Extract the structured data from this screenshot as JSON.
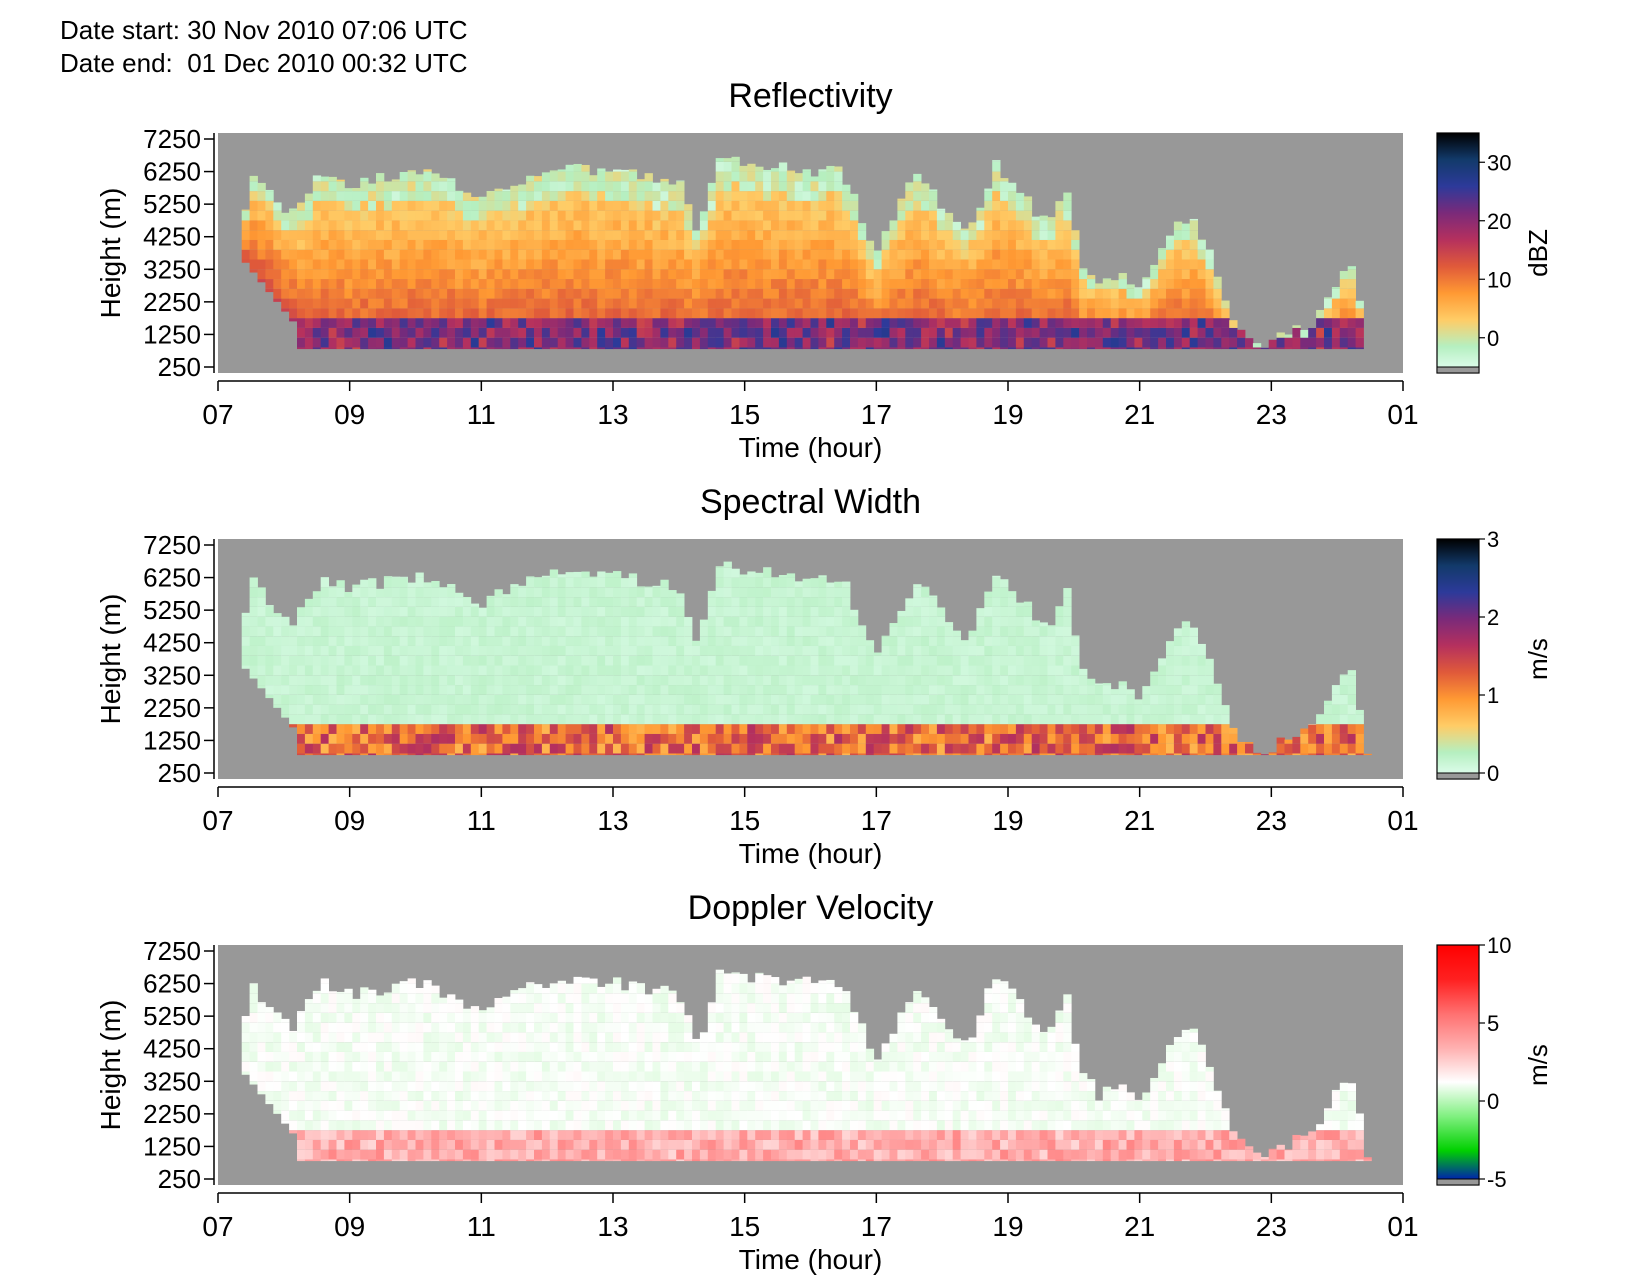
{
  "header": {
    "date_start": "Date start: 30 Nov 2010 07:06 UTC",
    "date_end": "Date end:  01 Dec 2010 00:32 UTC"
  },
  "colors": {
    "no_data": "#989898",
    "axis": "#000000"
  },
  "chart_data": [
    {
      "type": "heatmap",
      "title": "Reflectivity",
      "xlabel": "Time (hour)",
      "ylabel": "Height (m)",
      "x_ticks": [
        "07",
        "09",
        "11",
        "13",
        "15",
        "17",
        "19",
        "21",
        "23",
        "01"
      ],
      "y_ticks": [
        "7250",
        "6250",
        "5250",
        "4250",
        "3250",
        "2250",
        "1250",
        "250"
      ],
      "xlim": [
        "07:00",
        "01:00"
      ],
      "ylim": [
        250,
        7250
      ],
      "colorbar": {
        "label": "dBZ",
        "ticks": [
          "30",
          "20",
          "10",
          "0"
        ],
        "range": [
          -5,
          35
        ],
        "stops": [
          "#e6fff4",
          "#b5efc0",
          "#ffcc66",
          "#ff9933",
          "#e05a3a",
          "#b5305e",
          "#7a2a7a",
          "#2d3a9a",
          "#123a6a",
          "#000000"
        ]
      }
    },
    {
      "type": "heatmap",
      "title": "Spectral Width",
      "xlabel": "Time (hour)",
      "ylabel": "Height (m)",
      "x_ticks": [
        "07",
        "09",
        "11",
        "13",
        "15",
        "17",
        "19",
        "21",
        "23",
        "01"
      ],
      "y_ticks": [
        "7250",
        "6250",
        "5250",
        "4250",
        "3250",
        "2250",
        "1250",
        "250"
      ],
      "xlim": [
        "07:00",
        "01:00"
      ],
      "ylim": [
        250,
        7250
      ],
      "colorbar": {
        "label": "m/s",
        "ticks": [
          "3",
          "2",
          "1",
          "0"
        ],
        "range": [
          0,
          3
        ],
        "stops": [
          "#e6fff4",
          "#b5efc0",
          "#ffcc66",
          "#ff9933",
          "#e05a3a",
          "#b5305e",
          "#7a2a7a",
          "#2d3a9a",
          "#123a6a",
          "#000000"
        ]
      }
    },
    {
      "type": "heatmap",
      "title": "Doppler Velocity",
      "xlabel": "Time (hour)",
      "ylabel": "Height (m)",
      "x_ticks": [
        "07",
        "09",
        "11",
        "13",
        "15",
        "17",
        "19",
        "21",
        "23",
        "01"
      ],
      "y_ticks": [
        "7250",
        "6250",
        "5250",
        "4250",
        "3250",
        "2250",
        "1250",
        "250"
      ],
      "xlim": [
        "07:00",
        "01:00"
      ],
      "ylim": [
        250,
        7250
      ],
      "colorbar": {
        "label": "m/s",
        "ticks": [
          "10",
          "5",
          "0",
          "-5"
        ],
        "range": [
          -5,
          10
        ],
        "stops": [
          "#0000d0",
          "#00d000",
          "#80f080",
          "#ffffff",
          "#ffb0b0",
          "#ff7070",
          "#ff2020",
          "#ff0000"
        ]
      }
    }
  ]
}
